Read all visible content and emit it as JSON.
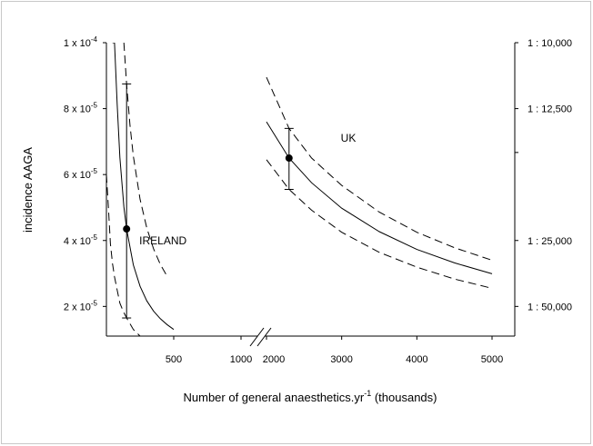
{
  "chart_data": {
    "type": "line",
    "xlabel": "Number of general anaesthetics.yr",
    "xlabel_sup": "-1",
    "xlabel_suffix": " (thousands)",
    "ylabel": "incidence AAGA",
    "x_ticks_left": [
      "500",
      "1000"
    ],
    "x_ticks_right": [
      "2000",
      "3000",
      "4000",
      "5000"
    ],
    "y_ticks_left": [
      {
        "value": 2e-05,
        "base": "2 x 10",
        "exp": "-5"
      },
      {
        "value": 4e-05,
        "base": "4 x 10",
        "exp": "-5"
      },
      {
        "value": 6e-05,
        "base": "6 x 10",
        "exp": "-5"
      },
      {
        "value": 8e-05,
        "base": "8 x 10",
        "exp": "-5"
      },
      {
        "value": 0.0001,
        "base": "1 x 10",
        "exp": "-4"
      }
    ],
    "y_ticks_right": [
      {
        "value": 0.0001,
        "label": "1 : 10,000"
      },
      {
        "value": 8e-05,
        "label": "1 : 12,500"
      },
      {
        "value": 6.67e-05,
        "label": ""
      },
      {
        "value": 4e-05,
        "label": "1 : 25,000"
      },
      {
        "value": 2e-05,
        "label": "1 : 50,000"
      }
    ],
    "ylim": [
      1.1e-05,
      0.0001
    ],
    "x_broken_axis": true,
    "annotations": [
      {
        "text": "IRELAND",
        "x": 420,
        "y": 4e-05
      },
      {
        "text": "UK",
        "x": 2300,
        "y": 7.1e-05
      }
    ],
    "points": [
      {
        "group": "IRELAND",
        "x": 150,
        "y": 4.35e-05,
        "err_low": 1.65e-05,
        "err_high": 8.75e-05
      },
      {
        "group": "UK",
        "x": 2300,
        "y": 6.5e-05,
        "err_low": 5.55e-05,
        "err_high": 7.4e-05
      }
    ],
    "series": [
      {
        "group": "IRELAND",
        "style": "solid",
        "x": [
          45,
          60,
          80,
          100,
          130,
          150,
          200,
          250,
          300,
          350,
          400,
          450,
          500
        ],
        "y": [
          0.0001,
          0.0001,
          8.15e-05,
          6.52e-05,
          5.02e-05,
          4.35e-05,
          3.26e-05,
          2.61e-05,
          2.17e-05,
          1.86e-05,
          1.63e-05,
          1.45e-05,
          1.3e-05
        ]
      },
      {
        "group": "IRELAND",
        "style": "dashed",
        "x": [
          130,
          150,
          175,
          200,
          250,
          300,
          350,
          400,
          450
        ],
        "y": [
          0.0001,
          8.75e-05,
          7.5e-05,
          6.56e-05,
          5.25e-05,
          4.38e-05,
          3.75e-05,
          3.28e-05,
          2.92e-05
        ]
      },
      {
        "group": "IRELAND",
        "style": "dashed",
        "x": [
          0,
          15,
          30,
          45,
          60,
          80,
          100,
          125,
          150,
          200,
          250
        ],
        "y": [
          6e-05,
          5e-05,
          3.9e-05,
          3.3e-05,
          2.9e-05,
          2.5e-05,
          2.1e-05,
          1.85e-05,
          1.65e-05,
          1.3e-05,
          1.1e-05
        ]
      },
      {
        "group": "UK",
        "style": "solid",
        "x": [
          2000,
          2300,
          2600,
          3000,
          3500,
          4000,
          4500,
          5000
        ],
        "y": [
          7.6e-05,
          6.5e-05,
          5.75e-05,
          4.98e-05,
          4.27e-05,
          3.73e-05,
          3.32e-05,
          2.99e-05
        ]
      },
      {
        "group": "UK",
        "style": "dashed",
        "x": [
          2000,
          2300,
          2600,
          3000,
          3500,
          4000,
          4500,
          5000
        ],
        "y": [
          8.95e-05,
          7.4e-05,
          6.5e-05,
          5.67e-05,
          4.86e-05,
          4.25e-05,
          3.78e-05,
          3.4e-05
        ]
      },
      {
        "group": "UK",
        "style": "dashed",
        "x": [
          2000,
          2300,
          2600,
          3000,
          3500,
          4000,
          4500,
          5000
        ],
        "y": [
          6.45e-05,
          5.55e-05,
          4.92e-05,
          4.25e-05,
          3.64e-05,
          3.19e-05,
          2.83e-05,
          2.55e-05
        ]
      }
    ]
  }
}
